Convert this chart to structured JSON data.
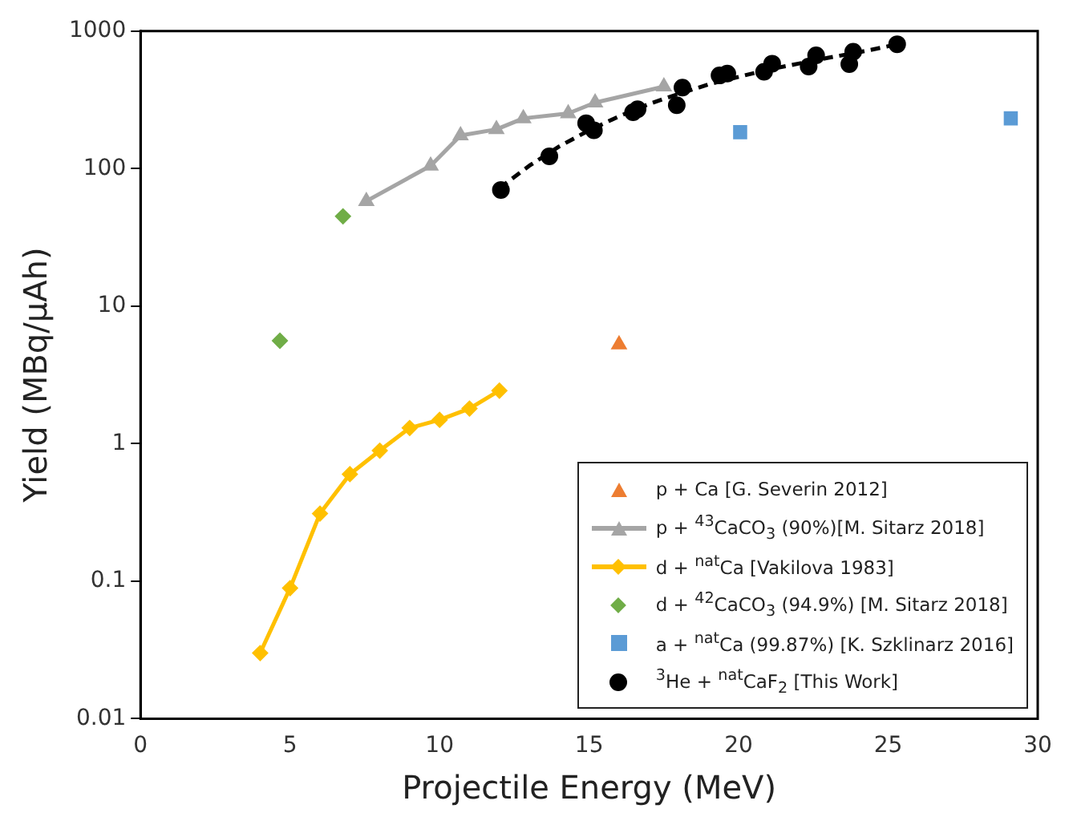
{
  "chart_data": {
    "type": "scatter",
    "xlabel": "Projectile Energy (MeV)",
    "ylabel": "Yield (MBq/μAh)",
    "xlim": [
      0,
      30
    ],
    "ylim": [
      0.01,
      1000
    ],
    "xticks": [
      0,
      5,
      10,
      15,
      20,
      25,
      30
    ],
    "yticks": [
      0.01,
      0.1,
      1,
      10,
      100,
      1000
    ],
    "log": "y",
    "legend": "bottom right",
    "series": [
      {
        "name": "p + Ca [G. Severin 2012]",
        "marker": "triangle",
        "color": "#ed7d31",
        "x": [
          16.0
        ],
        "values": [
          5.25
        ]
      },
      {
        "name": "p + $^{43}$CaCO$_{3}$ (90%)[M. Sitarz 2018]",
        "type": "line",
        "marker": "triangle",
        "line_style": "solid",
        "color": "#a5a5a5",
        "x": [
          7.55,
          9.7,
          10.7,
          11.9,
          12.8,
          14.3,
          15.2,
          17.5
        ],
        "values": [
          58,
          105,
          174,
          193,
          232,
          252,
          302,
          395
        ]
      },
      {
        "name": "d + $^{nat}$Ca [Vakilova 1983]",
        "type": "line",
        "marker": "diamond",
        "line_style": "solid",
        "color": "#ffc000",
        "x": [
          4,
          5,
          6,
          7,
          8,
          9,
          10,
          11,
          12
        ],
        "values": [
          0.03,
          0.089,
          0.31,
          0.6,
          0.89,
          1.3,
          1.49,
          1.8,
          2.43
        ]
      },
      {
        "name": "d + $^{42}$CaCO$_{3}$ (94.9%) [M. Sitarz 2018]",
        "marker": "diamond",
        "color": "#70ad47",
        "x": [
          4.66,
          6.77
        ],
        "values": [
          5.6,
          45
        ]
      },
      {
        "name": "a + $^{nat}$Ca (99.87%) [K. Szklinarz 2016]",
        "marker": "square",
        "color": "#5b9bd5",
        "x": [
          20.05,
          29.1
        ],
        "values": [
          184,
          232
        ]
      },
      {
        "name": "$^{3}$He + $^{nat}$CaF$_{2}$ [This Work]",
        "marker": "circle",
        "color": "#000000",
        "x": [
          12.05,
          13.67,
          14.9,
          15.16,
          16.47,
          16.62,
          17.93,
          18.12,
          19.36,
          19.62,
          20.85,
          21.12,
          22.34,
          22.59,
          23.7,
          23.83,
          25.3
        ],
        "values": [
          70,
          123,
          214,
          190,
          257,
          270,
          289,
          388,
          476,
          491,
          506,
          580,
          552,
          666,
          575,
          708,
          803
        ]
      },
      {
        "type": "line",
        "marker": "none",
        "line_style": "dashed",
        "color": "#000000",
        "x": [
          12,
          13,
          14,
          15,
          16,
          17,
          18,
          19,
          20,
          21,
          22,
          23,
          24,
          25.3
        ],
        "values": [
          72,
          105,
          145,
          190,
          240,
          295,
          350,
          410,
          465,
          525,
          580,
          640,
          700,
          800
        ]
      }
    ]
  }
}
